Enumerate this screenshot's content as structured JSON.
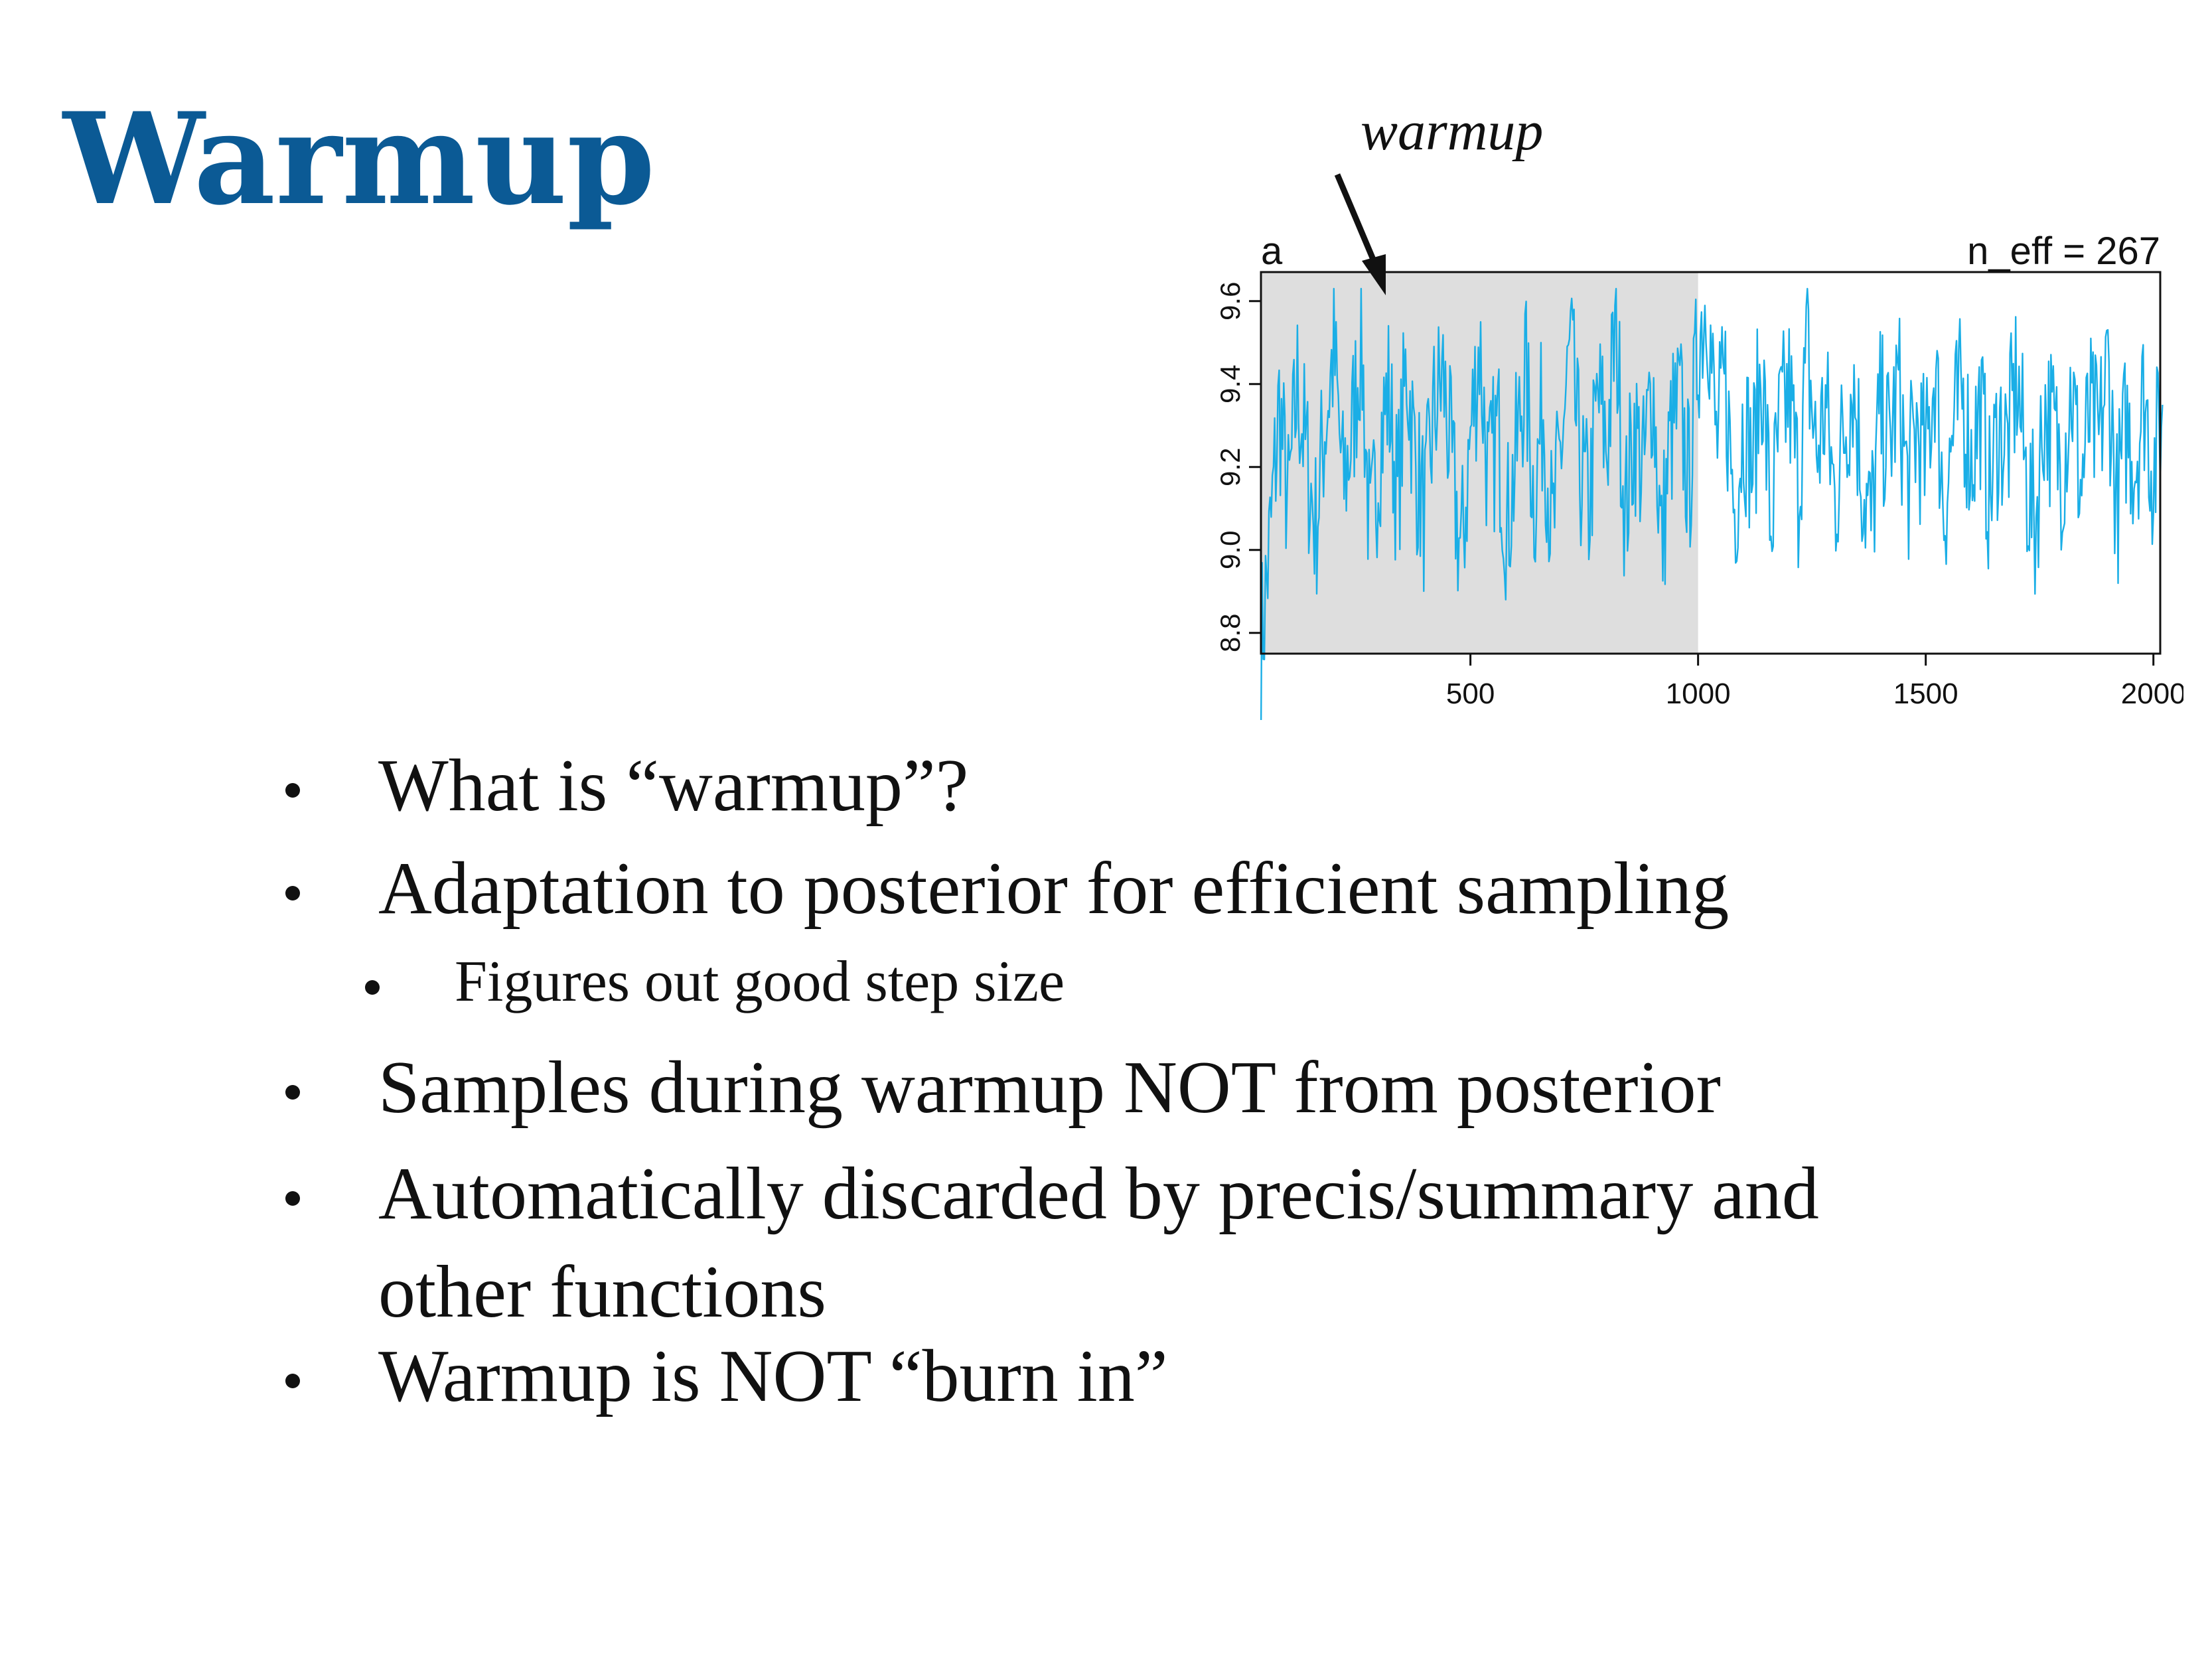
{
  "slide": {
    "title": "Warmup",
    "bullets": [
      {
        "level": 1,
        "lines": [
          "What is “warmup”?"
        ]
      },
      {
        "level": 1,
        "lines": [
          "Adaptation to posterior for efficient sampling"
        ]
      },
      {
        "level": 2,
        "lines": [
          "Figures out good step size"
        ]
      },
      {
        "level": 1,
        "lines": [
          "Samples during warmup NOT from posterior"
        ]
      },
      {
        "level": 1,
        "lines": [
          "Automatically discarded by precis/summary and",
          "other functions"
        ]
      },
      {
        "level": 1,
        "lines": [
          "Warmup is NOT “burn in”"
        ]
      }
    ]
  },
  "colors": {
    "title": "#0b5a95",
    "trace": "#1aaee6",
    "warmup_shade": "#dedede",
    "text": "#111111"
  },
  "chart_data": {
    "type": "line",
    "title": "a",
    "title_right": "n_eff = 267",
    "annotation": "warmup",
    "xlim": [
      40,
      2015
    ],
    "ylim": [
      8.75,
      9.67
    ],
    "x_ticks": [
      500,
      1000,
      1500,
      2000
    ],
    "y_ticks": [
      8.8,
      9.0,
      9.2,
      9.4,
      9.6
    ],
    "warmup_region": [
      40,
      1000
    ],
    "grid": false,
    "series": [
      {
        "x_start": 40,
        "x_step": 20,
        "values": [
          8.76,
          9.02,
          9.35,
          9.1,
          9.4,
          9.22,
          9.05,
          9.3,
          9.48,
          9.15,
          9.28,
          9.52,
          9.0,
          9.25,
          9.38,
          9.12,
          9.45,
          9.2,
          9.08,
          9.33,
          9.42,
          9.18,
          8.98,
          9.27,
          9.5,
          9.15,
          9.3,
          9.05,
          9.22,
          9.44,
          9.12,
          9.35,
          9.02,
          9.26,
          9.48,
          9.2,
          9.1,
          9.37,
          9.25,
          9.55,
          9.08,
          9.3,
          9.18,
          9.42,
          9.0,
          9.28,
          9.35,
          9.15,
          9.5,
          9.63,
          9.25,
          9.4,
          9.1,
          9.32,
          9.2,
          9.45,
          9.05,
          9.3,
          9.38,
          9.15,
          9.48,
          9.22,
          9.35,
          9.12,
          9.28,
          9.42,
          9.18,
          9.05,
          9.33,
          9.25,
          9.4,
          9.15,
          9.3,
          9.2,
          9.45,
          9.1,
          9.28,
          9.38,
          9.22,
          9.35,
          9.12,
          9.3,
          9.25,
          9.42,
          9.18,
          9.05,
          9.35,
          9.28,
          9.2,
          9.4,
          9.15,
          9.32,
          9.25,
          9.45,
          9.1,
          9.3,
          9.22,
          9.38,
          9.18,
          9.35
        ]
      }
    ]
  }
}
